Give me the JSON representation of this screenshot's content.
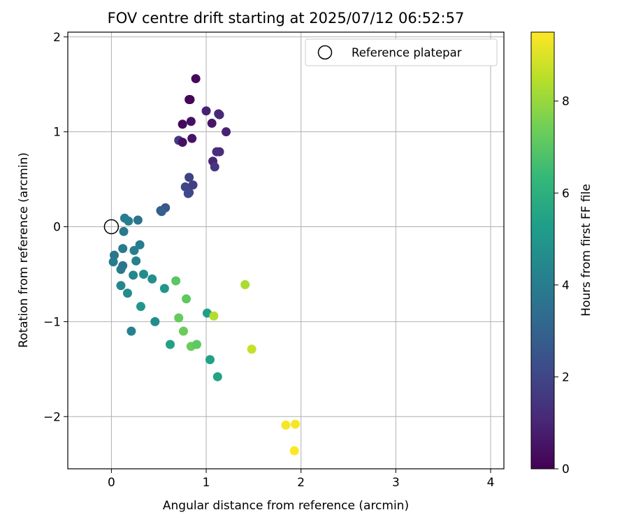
{
  "chart_data": {
    "type": "scatter",
    "title": "FOV centre drift starting at 2025/07/12 06:52:57",
    "xlabel": "Angular distance from reference (arcmin)",
    "ylabel": "Rotation from reference (arcmin)",
    "xlim": [
      -0.46,
      4.14
    ],
    "ylim": [
      -2.55,
      2.05
    ],
    "x_ticks": [
      0,
      1,
      2,
      3,
      4
    ],
    "y_ticks": [
      -2,
      -1,
      0,
      1,
      2
    ],
    "x_tick_labels": [
      "0",
      "1",
      "2",
      "3",
      "4"
    ],
    "y_tick_labels": [
      "−2",
      "−1",
      "0",
      "1",
      "2"
    ],
    "grid": true,
    "legend": {
      "placement": "top-right",
      "entries": [
        "Reference platepar"
      ]
    },
    "reference_point": {
      "name": "Reference platepar",
      "x": 0,
      "y": 0,
      "marker": "hollow-circle"
    },
    "colorbar": {
      "label": "Hours from first FF file",
      "min": 0,
      "max": 9.5,
      "ticks": [
        0,
        2,
        4,
        6,
        8
      ],
      "tick_labels": [
        "0",
        "2",
        "4",
        "6",
        "8"
      ],
      "colormap": "viridis"
    },
    "colormap_stops": [
      "#440154",
      "#482878",
      "#3e4989",
      "#31688e",
      "#26828e",
      "#1f9e89",
      "#35b779",
      "#6ece58",
      "#b5de2b",
      "#fde725"
    ],
    "points": [
      {
        "x": 0.89,
        "y": 1.56,
        "hours": 0.2
      },
      {
        "x": 0.82,
        "y": 1.34,
        "hours": 0.1
      },
      {
        "x": 0.83,
        "y": 1.34,
        "hours": 0.1
      },
      {
        "x": 0.75,
        "y": 1.08,
        "hours": 0.2
      },
      {
        "x": 0.84,
        "y": 1.11,
        "hours": 0.4
      },
      {
        "x": 1.0,
        "y": 1.22,
        "hours": 0.9
      },
      {
        "x": 1.13,
        "y": 1.19,
        "hours": 1.2
      },
      {
        "x": 1.14,
        "y": 1.18,
        "hours": 1.1
      },
      {
        "x": 1.06,
        "y": 1.09,
        "hours": 0.6
      },
      {
        "x": 1.21,
        "y": 1.0,
        "hours": 0.9
      },
      {
        "x": 0.71,
        "y": 0.91,
        "hours": 1.7
      },
      {
        "x": 0.75,
        "y": 0.89,
        "hours": 0.4
      },
      {
        "x": 0.85,
        "y": 0.93,
        "hours": 0.5
      },
      {
        "x": 1.11,
        "y": 0.79,
        "hours": 1.3
      },
      {
        "x": 1.14,
        "y": 0.79,
        "hours": 1.2
      },
      {
        "x": 1.07,
        "y": 0.69,
        "hours": 1.0
      },
      {
        "x": 1.09,
        "y": 0.63,
        "hours": 1.5
      },
      {
        "x": 0.82,
        "y": 0.52,
        "hours": 1.9
      },
      {
        "x": 0.78,
        "y": 0.42,
        "hours": 2.0
      },
      {
        "x": 0.86,
        "y": 0.44,
        "hours": 1.8
      },
      {
        "x": 0.82,
        "y": 0.36,
        "hours": 1.9
      },
      {
        "x": 0.81,
        "y": 0.35,
        "hours": 2.1
      },
      {
        "x": 0.57,
        "y": 0.2,
        "hours": 2.6
      },
      {
        "x": 0.52,
        "y": 0.17,
        "hours": 2.8
      },
      {
        "x": 0.53,
        "y": 0.16,
        "hours": 2.9
      },
      {
        "x": 0.14,
        "y": 0.09,
        "hours": 4.0
      },
      {
        "x": 0.18,
        "y": 0.06,
        "hours": 4.1
      },
      {
        "x": 0.28,
        "y": 0.07,
        "hours": 3.6
      },
      {
        "x": 0.13,
        "y": -0.05,
        "hours": 3.8
      },
      {
        "x": 0.3,
        "y": -0.19,
        "hours": 4.0
      },
      {
        "x": 0.12,
        "y": -0.23,
        "hours": 3.9
      },
      {
        "x": 0.24,
        "y": -0.25,
        "hours": 4.1
      },
      {
        "x": 0.03,
        "y": -0.3,
        "hours": 3.7
      },
      {
        "x": 0.02,
        "y": -0.37,
        "hours": 3.9
      },
      {
        "x": 0.26,
        "y": -0.36,
        "hours": 4.2
      },
      {
        "x": 0.12,
        "y": -0.41,
        "hours": 3.6
      },
      {
        "x": 0.1,
        "y": -0.45,
        "hours": 3.8
      },
      {
        "x": 0.34,
        "y": -0.5,
        "hours": 4.6
      },
      {
        "x": 0.23,
        "y": -0.51,
        "hours": 4.4
      },
      {
        "x": 0.43,
        "y": -0.55,
        "hours": 4.7
      },
      {
        "x": 0.1,
        "y": -0.62,
        "hours": 4.4
      },
      {
        "x": 0.56,
        "y": -0.65,
        "hours": 5.0
      },
      {
        "x": 0.17,
        "y": -0.7,
        "hours": 4.6
      },
      {
        "x": 0.31,
        "y": -0.84,
        "hours": 5.0
      },
      {
        "x": 1.01,
        "y": -0.91,
        "hours": 5.3
      },
      {
        "x": 0.46,
        "y": -1.0,
        "hours": 4.6
      },
      {
        "x": 0.21,
        "y": -1.1,
        "hours": 4.2
      },
      {
        "x": 0.62,
        "y": -1.24,
        "hours": 5.4
      },
      {
        "x": 1.04,
        "y": -1.4,
        "hours": 5.4
      },
      {
        "x": 1.12,
        "y": -1.58,
        "hours": 5.5
      },
      {
        "x": 0.68,
        "y": -0.57,
        "hours": 7.0
      },
      {
        "x": 0.79,
        "y": -0.76,
        "hours": 7.1
      },
      {
        "x": 0.71,
        "y": -0.96,
        "hours": 7.2
      },
      {
        "x": 0.76,
        "y": -1.1,
        "hours": 7.3
      },
      {
        "x": 0.84,
        "y": -1.26,
        "hours": 7.3
      },
      {
        "x": 0.9,
        "y": -1.24,
        "hours": 7.1
      },
      {
        "x": 1.08,
        "y": -0.94,
        "hours": 8.4
      },
      {
        "x": 1.41,
        "y": -0.61,
        "hours": 8.3
      },
      {
        "x": 1.48,
        "y": -1.29,
        "hours": 8.7
      },
      {
        "x": 1.84,
        "y": -2.09,
        "hours": 9.4
      },
      {
        "x": 1.94,
        "y": -2.08,
        "hours": 9.4
      },
      {
        "x": 1.93,
        "y": -2.36,
        "hours": 9.5
      }
    ]
  }
}
